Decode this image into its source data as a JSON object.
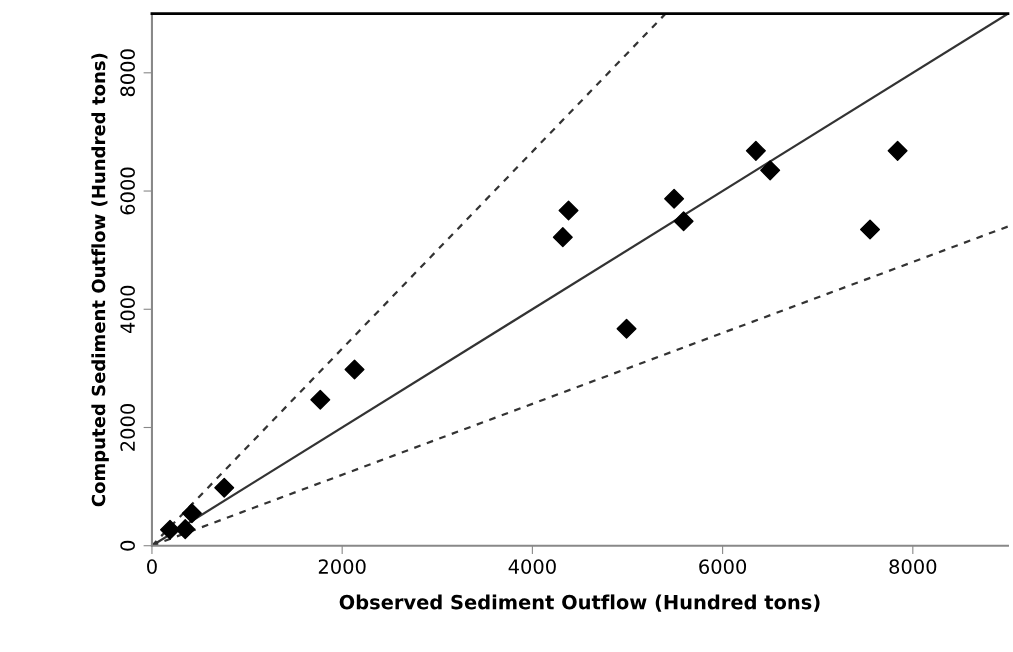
{
  "chart_data": {
    "type": "scatter",
    "xlabel": "Observed Sediment Outflow (Hundred tons)",
    "ylabel": "Computed Sediment Outflow (Hundred tons)",
    "xlim": [
      0,
      9000
    ],
    "ylim": [
      0,
      9000
    ],
    "xticks": [
      0,
      2000,
      4000,
      6000,
      8000
    ],
    "yticks": [
      0,
      2000,
      4000,
      6000,
      8000
    ],
    "grid": false,
    "series": [
      {
        "marker": "diamond",
        "color": "#000000",
        "x": [
          190,
          350,
          420,
          760,
          1770,
          2130,
          4380,
          4320,
          5490,
          5590,
          6350,
          6500,
          7840,
          7550,
          4990
        ],
        "values": [
          270,
          280,
          550,
          980,
          2470,
          2980,
          5670,
          5220,
          5870,
          5490,
          6680,
          6350,
          6680,
          5350,
          3670
        ]
      },
      {
        "type": "line",
        "line_style": "solid",
        "marker": "none",
        "color": "#333333",
        "x": [
          0,
          9000
        ],
        "values": [
          0,
          9000
        ]
      },
      {
        "type": "line",
        "line_style": "dashed",
        "marker": "none",
        "color": "#333333",
        "x": [
          0,
          5400
        ],
        "values": [
          0,
          9000
        ]
      },
      {
        "type": "line",
        "line_style": "dashed",
        "marker": "none",
        "color": "#333333",
        "x": [
          0,
          9000
        ],
        "values": [
          0,
          5400
        ]
      }
    ]
  }
}
